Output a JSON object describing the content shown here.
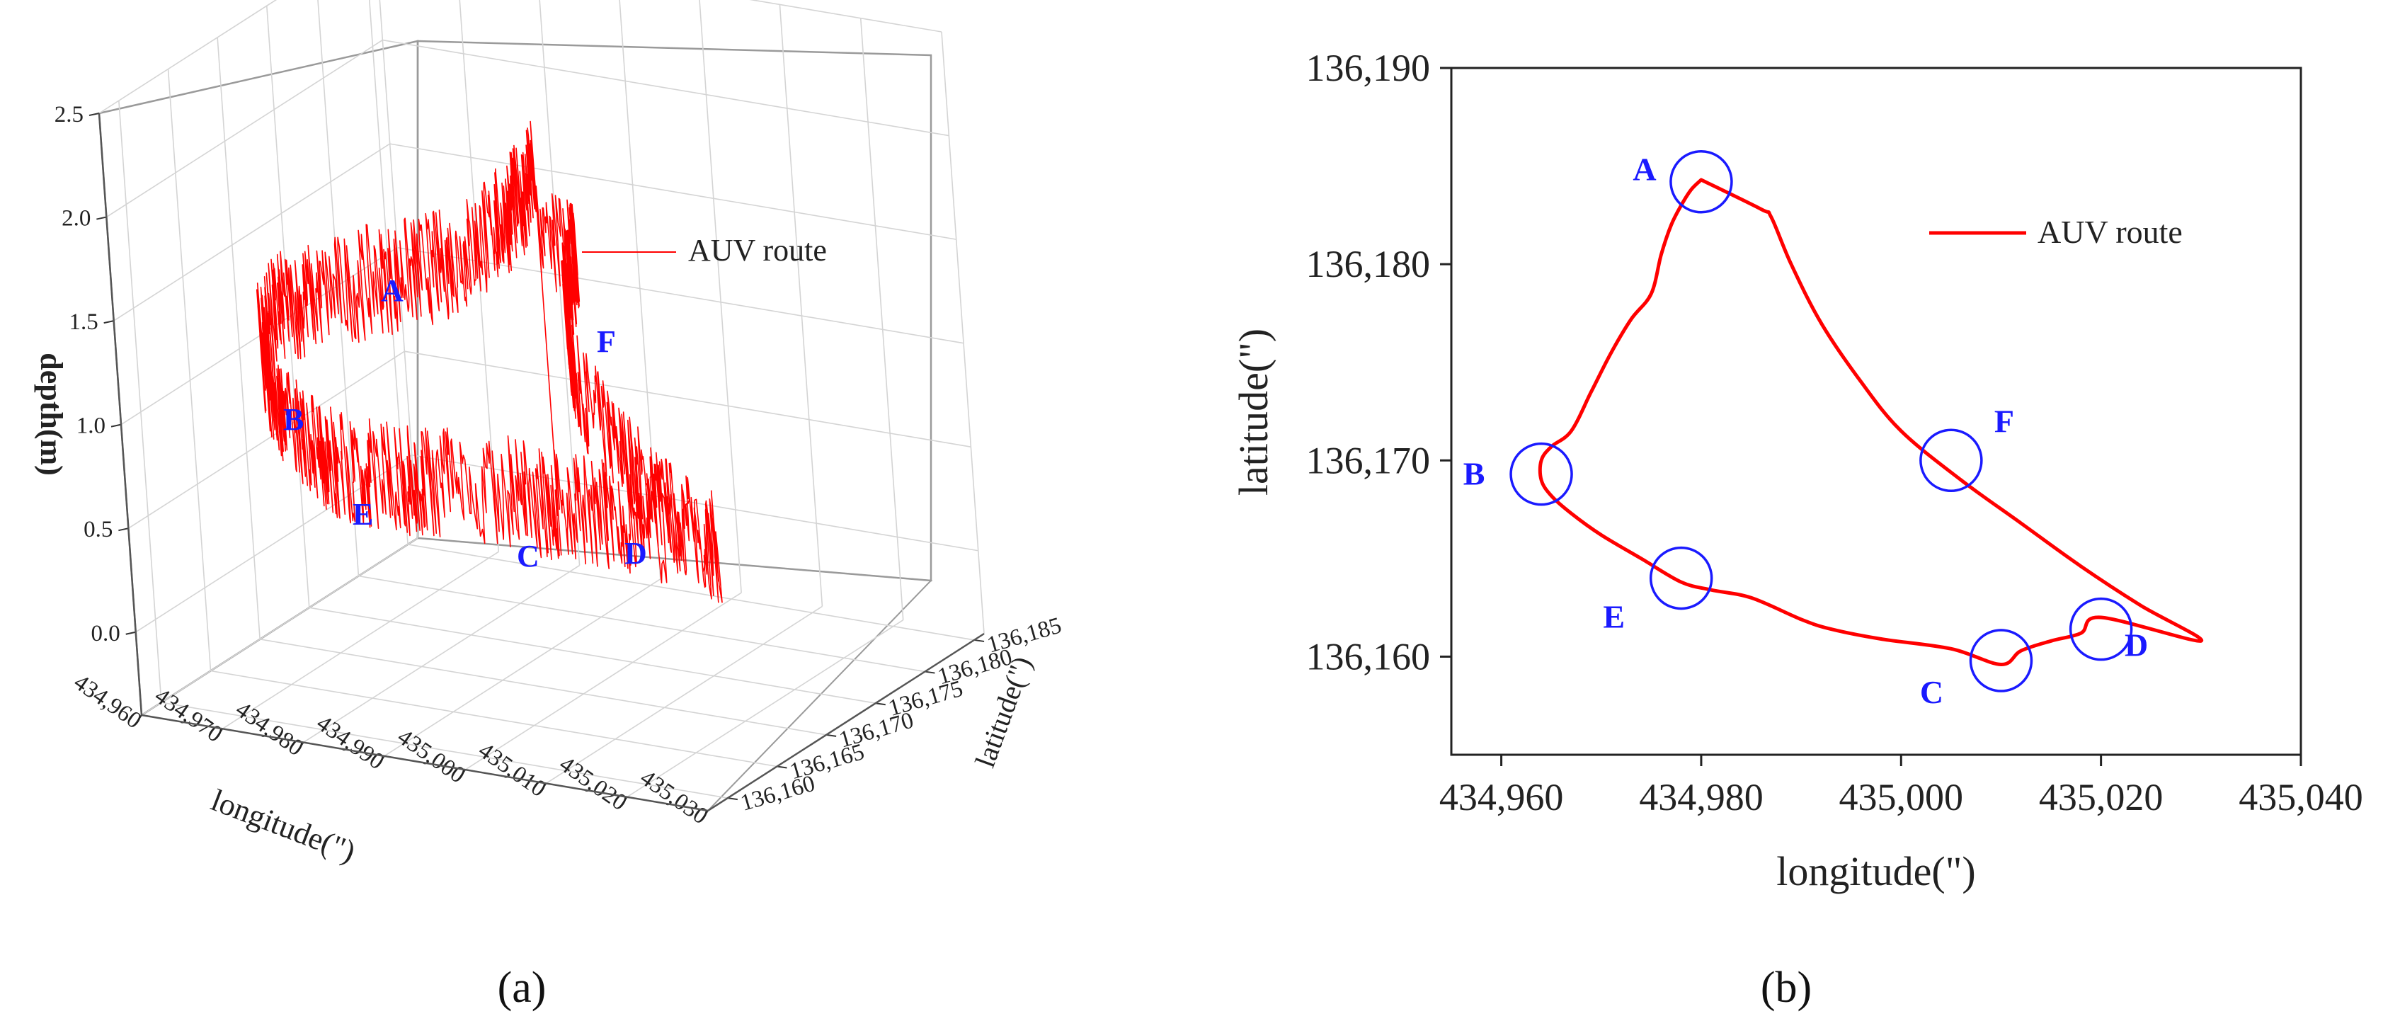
{
  "chart_data": [
    {
      "panel": "(a)",
      "type": "line",
      "xlabel": "longitude(\")",
      "ylabel": "latitude(\")",
      "zlabel": "depth(m)",
      "legend": {
        "label": "AUV route",
        "color": "#ff0000",
        "position": "top-right"
      },
      "grid": true,
      "x_ticks": [
        "434,960",
        "434,970",
        "434,980",
        "434,990",
        "435,000",
        "435,010",
        "435,020",
        "435,030"
      ],
      "y_ticks": [
        "136,160",
        "136,165",
        "136,170",
        "136,175",
        "136,180",
        "136,185"
      ],
      "z_ticks": [
        "0.0",
        "0.5",
        "1.0",
        "1.5",
        "2.0",
        "2.5"
      ],
      "xlim": [
        434960,
        435030
      ],
      "ylim": [
        136158,
        136186
      ],
      "zlim": [
        -0.4,
        2.5
      ],
      "points": [
        {
          "label": "A",
          "x": 434980,
          "y": 136184,
          "z": 1.35
        },
        {
          "label": "B",
          "x": 434964,
          "y": 136169,
          "z": 1.15
        },
        {
          "label": "C",
          "x": 435010,
          "y": 136160,
          "z": 0.75
        },
        {
          "label": "D",
          "x": 435020,
          "y": 136161,
          "z": 0.78
        },
        {
          "label": "E",
          "x": 434978,
          "y": 136164,
          "z": 0.9
        },
        {
          "label": "F",
          "x": 435005,
          "y": 136170,
          "z": 1.3
        }
      ]
    },
    {
      "panel": "(b)",
      "type": "line",
      "xlabel": "longitude(\")",
      "ylabel": "latitude(\")",
      "legend": {
        "label": "AUV route",
        "color": "#ff0000",
        "position": "top-right"
      },
      "grid": false,
      "xlim": [
        434955,
        435040
      ],
      "ylim": [
        136155,
        136190
      ],
      "x_ticks": [
        "434,960",
        "434,980",
        "435,000",
        "435,020",
        "435,040"
      ],
      "y_ticks": [
        "136,160",
        "136,170",
        "136,180",
        "136,190"
      ],
      "series": [
        {
          "color": "#ff0000",
          "x": [
            434980,
            434986,
            434987,
            434989,
            434992,
            434996,
            435000,
            435006,
            435012,
            435018,
            435024,
            435030,
            435020,
            435018,
            435015,
            435012,
            435010,
            435005,
            434998,
            434993,
            434990,
            434985,
            434981,
            434978,
            434974,
            434970,
            434967,
            434965,
            434964,
            434964,
            434965,
            434967,
            434969,
            434971,
            434973,
            434975,
            434976,
            434977,
            434978,
            434979,
            434980
          ],
          "y": [
            136184.3,
            136182.8,
            136182.4,
            136180,
            136177,
            136174,
            136171.5,
            136169,
            136166.8,
            136164.6,
            136162.6,
            136160.8,
            136162,
            136161.2,
            136160.8,
            136160.3,
            136159.6,
            136160.4,
            136160.9,
            136161.4,
            136161.9,
            136163,
            136163.4,
            136163.8,
            136165,
            136166.2,
            136167.3,
            136168.2,
            136169,
            136170,
            136170.7,
            136171.5,
            136173.5,
            136175.5,
            136177.2,
            136178.5,
            136180.5,
            136182,
            136183,
            136183.8,
            136184.3
          ]
        }
      ],
      "markers": [
        {
          "label": "A",
          "x": 434980,
          "y": 136184.2
        },
        {
          "label": "B",
          "x": 434964,
          "y": 136169.3
        },
        {
          "label": "C",
          "x": 435010,
          "y": 136159.8
        },
        {
          "label": "D",
          "x": 435020,
          "y": 136161.4
        },
        {
          "label": "E",
          "x": 434978,
          "y": 136164
        },
        {
          "label": "F",
          "x": 435005,
          "y": 136170
        }
      ]
    }
  ],
  "captions": {
    "a": "(a)",
    "b": "(b)"
  }
}
